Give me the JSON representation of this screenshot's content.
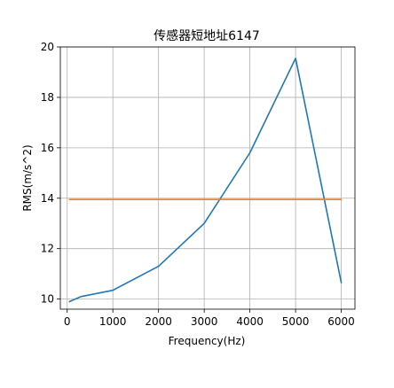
{
  "chart_data": {
    "type": "line",
    "title": "传感器短地址6147",
    "xlabel": "Frequency(Hz)",
    "ylabel": "RMS(m/s^2)",
    "xlim": [
      -150,
      6300
    ],
    "ylim": [
      9.6,
      20
    ],
    "xticks": [
      0,
      1000,
      2000,
      3000,
      4000,
      5000,
      6000
    ],
    "yticks": [
      10,
      12,
      14,
      16,
      18,
      20
    ],
    "grid": true,
    "series": [
      {
        "color": "#1f77b4",
        "x": [
          50,
          300,
          1000,
          2000,
          3000,
          4000,
          5000,
          6000
        ],
        "y": [
          9.9,
          10.1,
          10.35,
          11.3,
          13.0,
          15.8,
          19.55,
          10.65
        ]
      },
      {
        "color": "#ff7f0e",
        "x": [
          50,
          6000
        ],
        "y": [
          13.95,
          13.95
        ]
      }
    ]
  }
}
